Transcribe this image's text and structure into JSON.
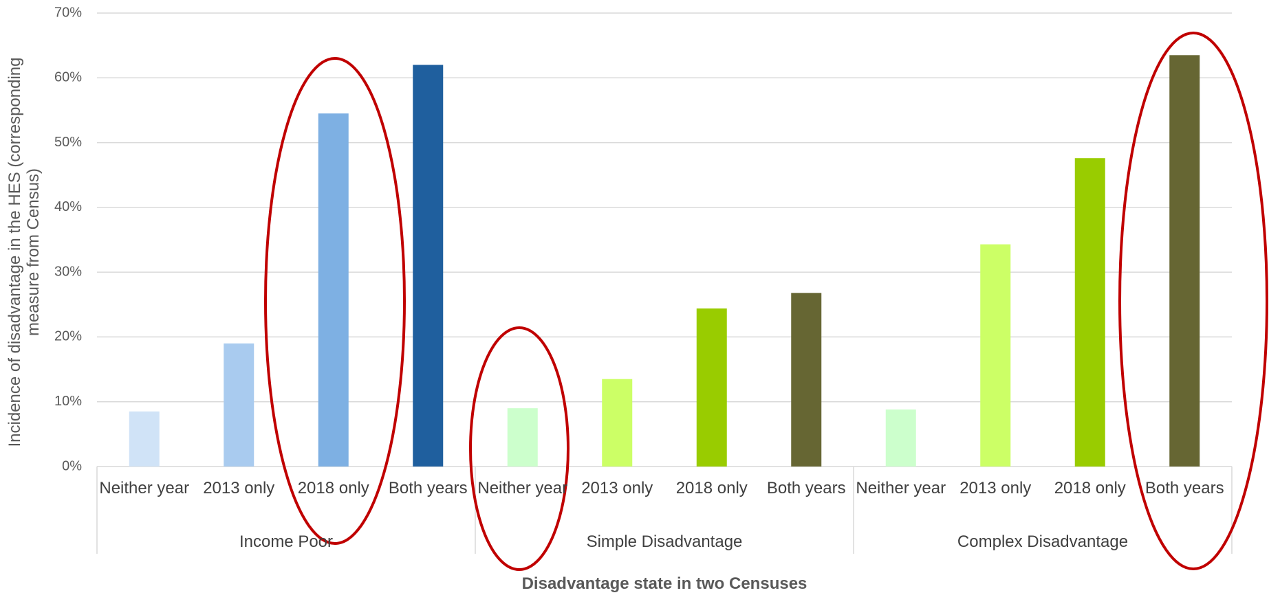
{
  "chart_data": {
    "type": "bar",
    "ylabel": "Incidence of disadvantage in the HES (corresponding measure from Census)",
    "xlabel": "Disadvantage state in two Censuses",
    "ylim": [
      0,
      70
    ],
    "yticks": [
      {
        "value": 0,
        "label": "0%"
      },
      {
        "value": 10,
        "label": "10%"
      },
      {
        "value": 20,
        "label": "20%"
      },
      {
        "value": 30,
        "label": "30%"
      },
      {
        "value": 40,
        "label": "40%"
      },
      {
        "value": 50,
        "label": "50%"
      },
      {
        "value": 60,
        "label": "60%"
      },
      {
        "value": 70,
        "label": "70%"
      }
    ],
    "grid": true,
    "groups": [
      {
        "name": "Income Poor",
        "categories": [
          "Neither year",
          "2013 only",
          "2018 only",
          "Both years"
        ],
        "values": [
          8.5,
          19,
          54.5,
          62
        ],
        "colors": [
          "#d0e3f7",
          "#a9cbef",
          "#7eb0e3",
          "#1f5f9e"
        ]
      },
      {
        "name": "Simple Disadvantage",
        "categories": [
          "Neither year",
          "2013 only",
          "2018 only",
          "Both years"
        ],
        "values": [
          9,
          13.5,
          24.4,
          26.8
        ],
        "colors": [
          "#ccffcc",
          "#ccff66",
          "#99cc00",
          "#666633"
        ]
      },
      {
        "name": "Complex Disadvantage",
        "categories": [
          "Neither year",
          "2013 only",
          "2018 only",
          "Both years"
        ],
        "values": [
          8.8,
          34.3,
          47.6,
          63.5
        ],
        "colors": [
          "#ccffcc",
          "#ccff66",
          "#99cc00",
          "#666633"
        ]
      }
    ]
  }
}
